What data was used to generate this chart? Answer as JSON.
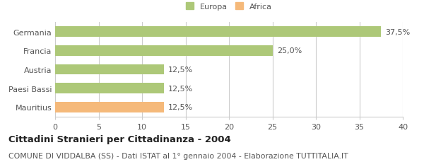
{
  "categories": [
    "Germania",
    "Francia",
    "Austria",
    "Paesi Bassi",
    "Mauritius"
  ],
  "values": [
    37.5,
    25.0,
    12.5,
    12.5,
    12.5
  ],
  "bar_colors": [
    "#adc878",
    "#adc878",
    "#adc878",
    "#adc878",
    "#f5b97a"
  ],
  "value_labels": [
    "37,5%",
    "25,0%",
    "12,5%",
    "12,5%",
    "12,5%"
  ],
  "legend_labels": [
    "Europa",
    "Africa"
  ],
  "legend_colors": [
    "#adc878",
    "#f5b97a"
  ],
  "xlim": [
    0,
    40
  ],
  "xticks": [
    0,
    5,
    10,
    15,
    20,
    25,
    30,
    35,
    40
  ],
  "title": "Cittadini Stranieri per Cittadinanza - 2004",
  "subtitle": "COMUNE DI VIDDALBA (SS) - Dati ISTAT al 1° gennaio 2004 - Elaborazione TUTTITALIA.IT",
  "title_fontsize": 9.5,
  "subtitle_fontsize": 7.8,
  "label_fontsize": 8,
  "tick_fontsize": 8,
  "bar_height": 0.55,
  "background_color": "#ffffff",
  "grid_color": "#cccccc",
  "text_color": "#555555"
}
